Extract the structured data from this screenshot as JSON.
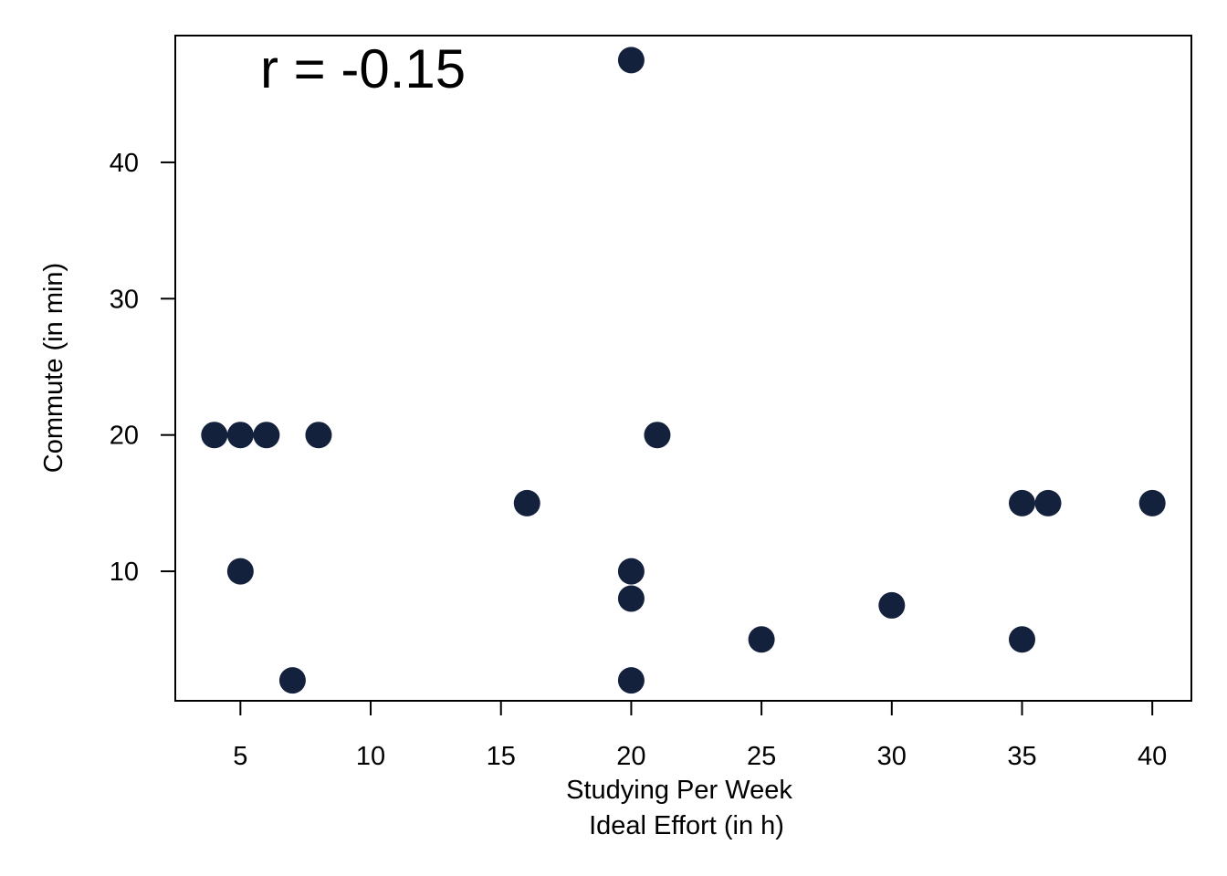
{
  "chart_data": {
    "type": "scatter",
    "xlabel_lines": [
      "Studying Per Week",
      "Ideal Effort (in h)"
    ],
    "ylabel": "Commute (in min)",
    "annotation": "r = -0.15",
    "xlim": [
      2.5,
      41.5
    ],
    "ylim": [
      0.5,
      49.3
    ],
    "x_ticks": [
      5,
      10,
      15,
      20,
      25,
      30,
      35,
      40
    ],
    "y_ticks": [
      10,
      20,
      30,
      40
    ],
    "grid": false,
    "point_color": "#14213d",
    "points": [
      {
        "x": 4,
        "y": 20
      },
      {
        "x": 5,
        "y": 20
      },
      {
        "x": 6,
        "y": 20
      },
      {
        "x": 8,
        "y": 20
      },
      {
        "x": 5,
        "y": 10
      },
      {
        "x": 7,
        "y": 2
      },
      {
        "x": 16,
        "y": 15
      },
      {
        "x": 20,
        "y": 47.5
      },
      {
        "x": 20,
        "y": 10
      },
      {
        "x": 20,
        "y": 8
      },
      {
        "x": 20,
        "y": 2
      },
      {
        "x": 21,
        "y": 20
      },
      {
        "x": 25,
        "y": 5
      },
      {
        "x": 30,
        "y": 7.5
      },
      {
        "x": 35,
        "y": 15
      },
      {
        "x": 36,
        "y": 15
      },
      {
        "x": 35,
        "y": 5
      },
      {
        "x": 40,
        "y": 15
      }
    ]
  }
}
